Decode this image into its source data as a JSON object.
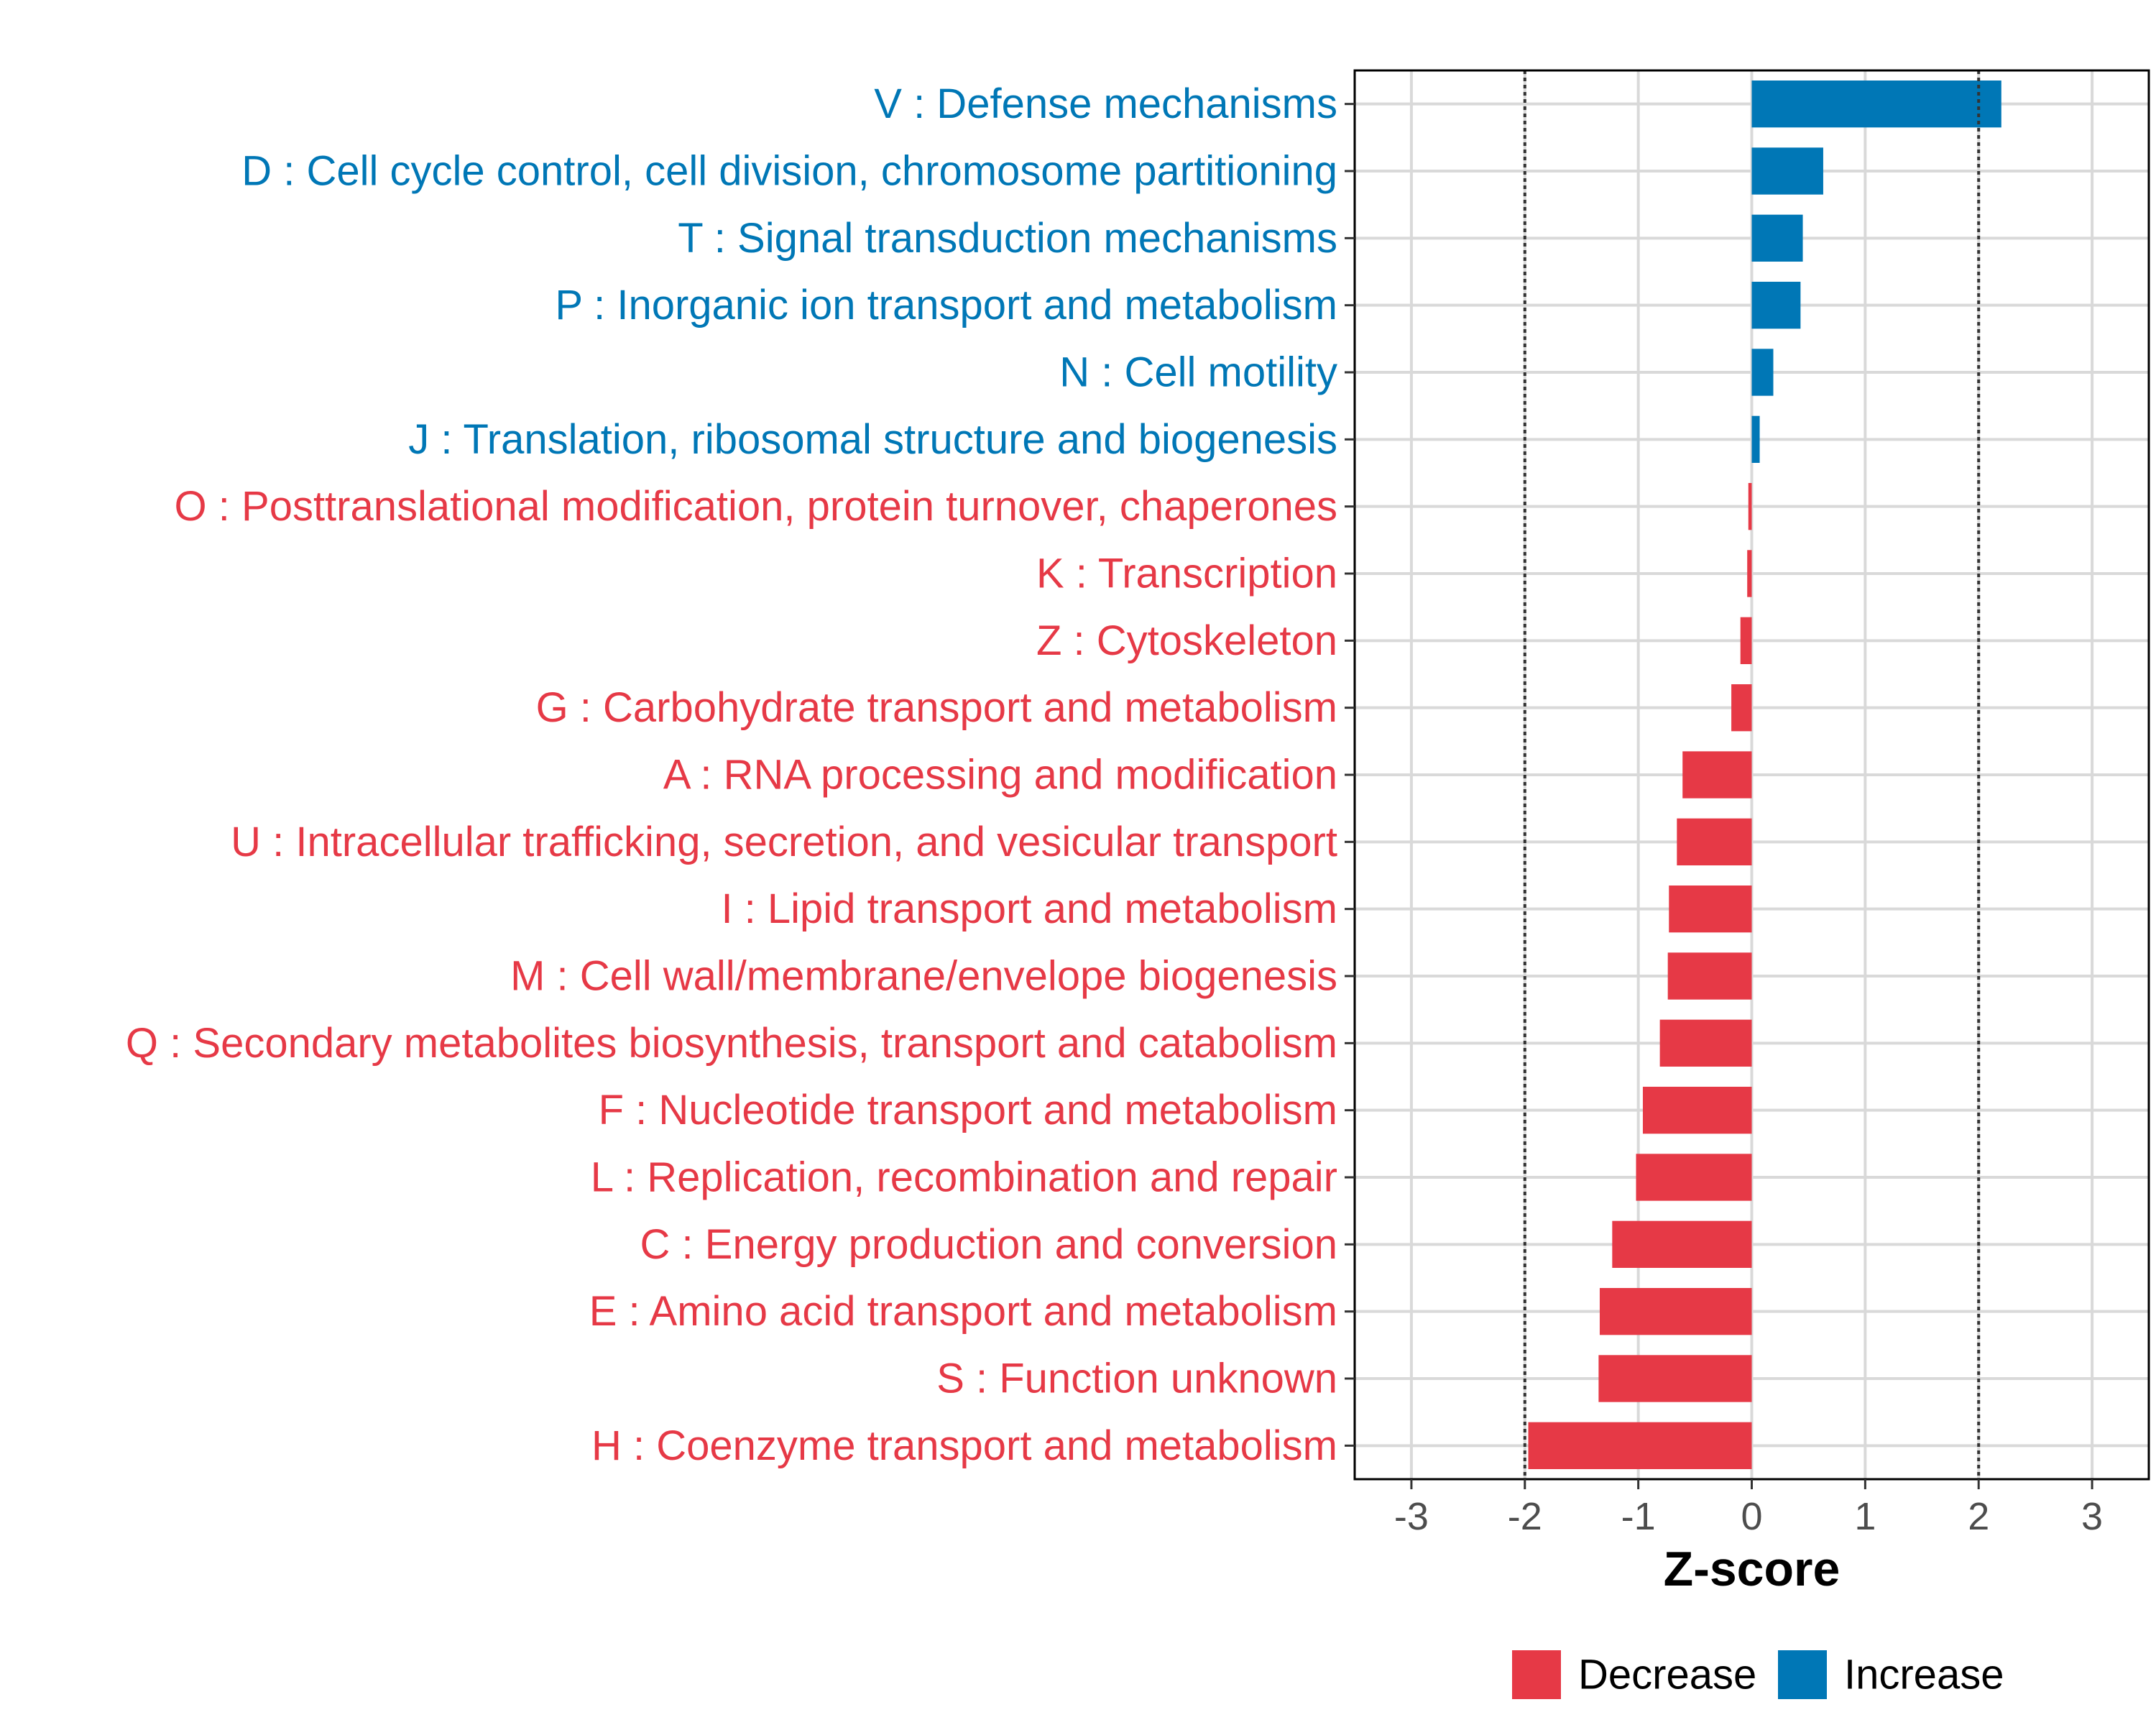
{
  "chart_data": {
    "type": "bar",
    "orientation": "horizontal",
    "title": "",
    "xlabel": "Z-score",
    "ylabel": "",
    "xlim": [
      -3.5,
      3.5
    ],
    "x_ticks": [
      -3,
      -2,
      -1,
      0,
      1,
      2,
      3
    ],
    "x_tick_labels": [
      "-3",
      "-2",
      "-1",
      "0",
      "1",
      "2",
      "3"
    ],
    "reference_lines": [
      -2,
      2
    ],
    "grid": true,
    "legend_position": "bottom",
    "legend": [
      {
        "label": "Decrease",
        "color": "#e63946"
      },
      {
        "label": "Increase",
        "color": "#0077b6"
      }
    ],
    "categories": [
      "V : Defense mechanisms",
      "D : Cell cycle control, cell division, chromosome partitioning",
      "T : Signal transduction mechanisms",
      "P : Inorganic ion transport and metabolism",
      "N : Cell motility",
      "J : Translation, ribosomal structure and biogenesis",
      "O : Posttranslational modification, protein turnover, chaperones",
      "K : Transcription",
      "Z : Cytoskeleton",
      "G : Carbohydrate transport and metabolism",
      "A : RNA processing and modification",
      "U : Intracellular trafficking, secretion, and vesicular transport",
      "I : Lipid transport and metabolism",
      "M : Cell wall/membrane/envelope biogenesis",
      "Q : Secondary metabolites biosynthesis, transport and catabolism",
      "F : Nucleotide transport and metabolism",
      "L : Replication, recombination and repair",
      "C : Energy production and conversion",
      "E : Amino acid transport and metabolism",
      "S : Function unknown",
      "H : Coenzyme transport and metabolism"
    ],
    "values": [
      2.2,
      0.63,
      0.45,
      0.43,
      0.19,
      0.07,
      -0.03,
      -0.04,
      -0.1,
      -0.18,
      -0.61,
      -0.66,
      -0.73,
      -0.74,
      -0.81,
      -0.96,
      -1.02,
      -1.23,
      -1.34,
      -1.35,
      -1.97
    ],
    "colors": {
      "decrease": "#e63946",
      "increase": "#0077b6"
    }
  }
}
